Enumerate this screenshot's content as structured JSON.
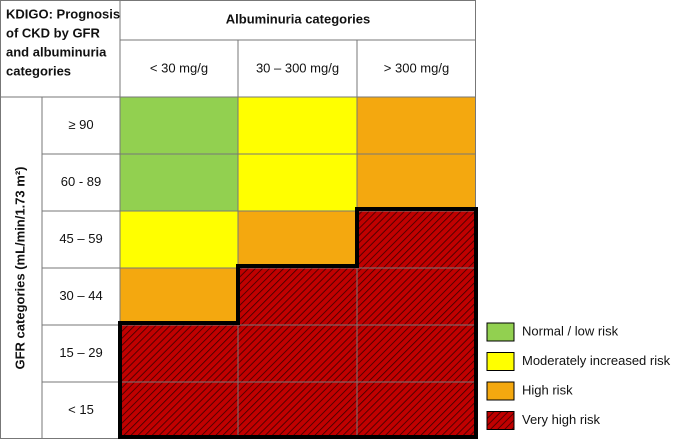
{
  "title_lines": [
    "KDIGO: Prognosis",
    "of CKD by GFR",
    "and albuminuria",
    "categories"
  ],
  "albuminuria_title": "Albuminuria categories",
  "albuminuria_categories": [
    "< 30 mg/g",
    "30 – 300 mg/g",
    "> 300 mg/g"
  ],
  "gfr_title": "GFR categories (mL/min/1.73 m²)",
  "gfr_categories": [
    "≥ 90",
    "60 - 89",
    "45 – 59",
    "30 – 44",
    "15 – 29",
    "< 15"
  ],
  "legend": [
    {
      "name": "Normal / low risk",
      "color": "#92d050"
    },
    {
      "name": "Moderately increased risk",
      "color": "#ffff00"
    },
    {
      "name": "High risk",
      "color": "#f4a80f"
    },
    {
      "name": "Very high risk",
      "color": "#c00000"
    }
  ]
}
